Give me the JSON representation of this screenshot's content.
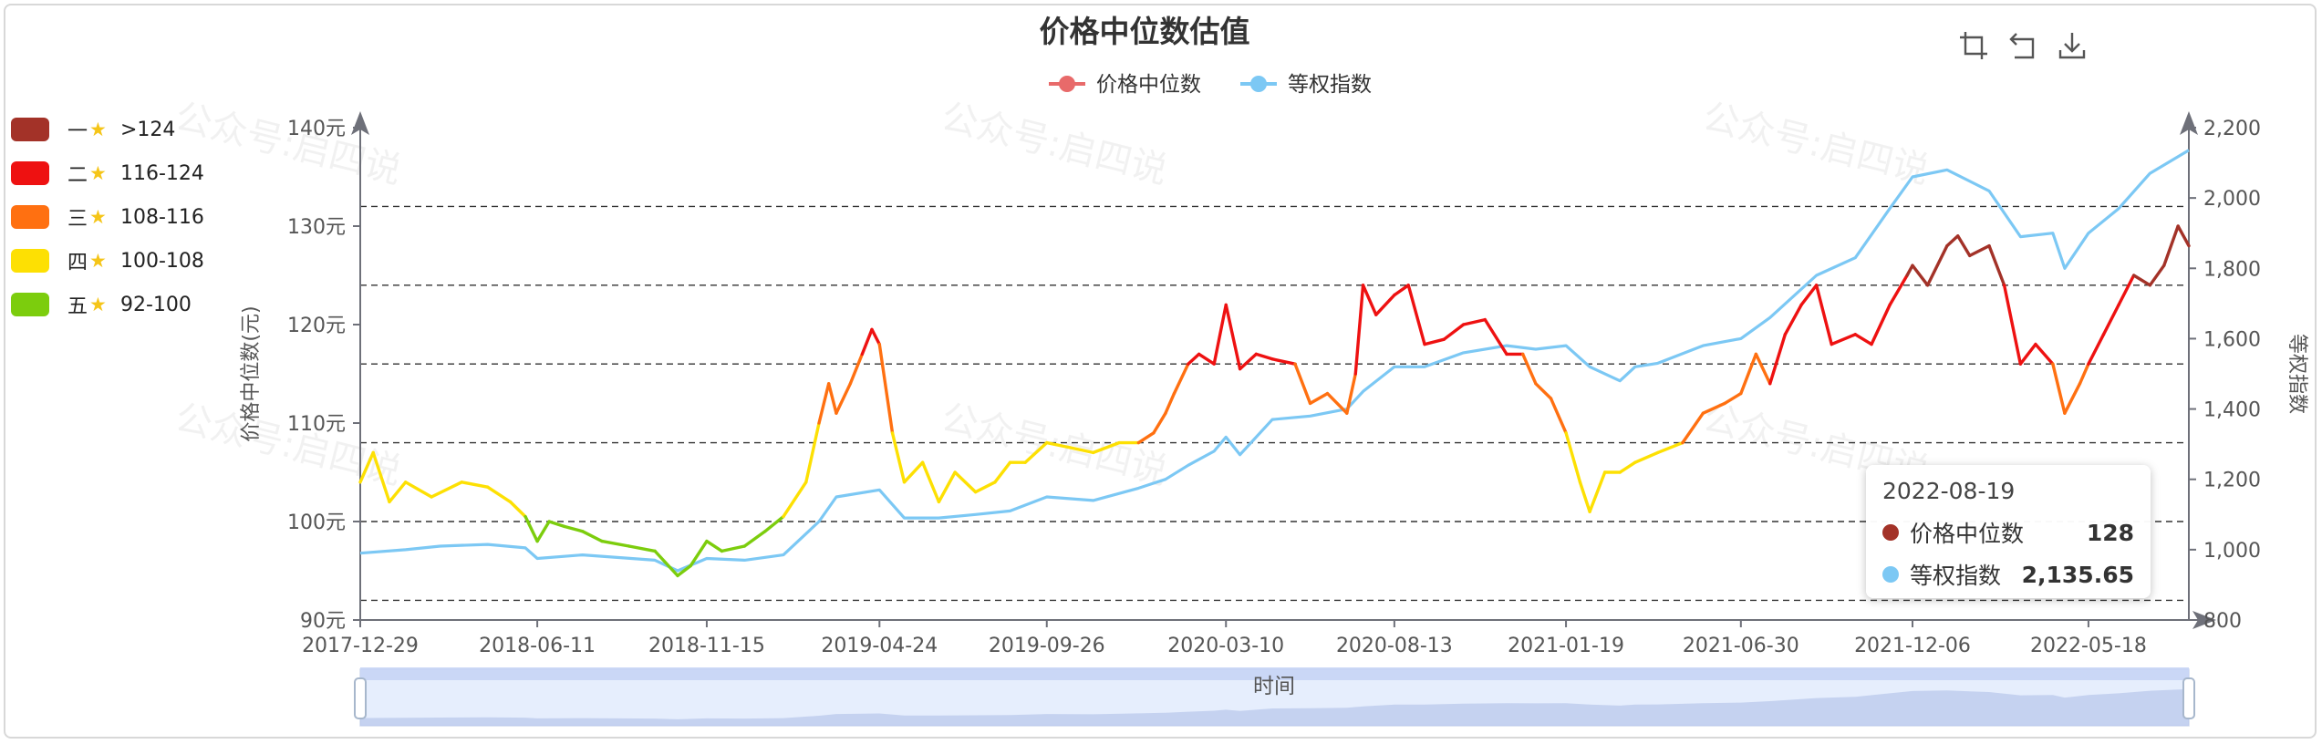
{
  "chart_data": {
    "type": "line",
    "title": "价格中位数估值",
    "xlabel": "时间",
    "ylabel": "价格中位数(元)",
    "y2label": "等权指数",
    "x_ticks": [
      "2017-12-29",
      "2018-06-11",
      "2018-11-15",
      "2019-04-24",
      "2019-09-26",
      "2020-03-10",
      "2020-08-13",
      "2021-01-19",
      "2021-06-30",
      "2021-12-06",
      "2022-05-18"
    ],
    "y_ticks": [
      "90元",
      "100元",
      "110元",
      "120元",
      "130元",
      "140元"
    ],
    "y2_ticks": [
      "800",
      "1,000",
      "1,200",
      "1,400",
      "1,600",
      "1,800",
      "2,000",
      "2,200"
    ],
    "ylim": [
      90,
      140
    ],
    "y2lim": [
      800,
      2200
    ],
    "reference_lines": [
      92,
      100,
      108,
      116,
      124,
      132
    ],
    "x_range": [
      "2017-12-29",
      "2022-08-19"
    ],
    "series": [
      {
        "name": "价格中位数",
        "axis": "left",
        "color": "#e86a6a",
        "points": [
          [
            "2017-12-29",
            104
          ],
          [
            "2018-01-10",
            107
          ],
          [
            "2018-01-25",
            102
          ],
          [
            "2018-02-09",
            104
          ],
          [
            "2018-03-05",
            102.5
          ],
          [
            "2018-04-02",
            104
          ],
          [
            "2018-04-26",
            103.5
          ],
          [
            "2018-05-17",
            102
          ],
          [
            "2018-05-31",
            100.5
          ],
          [
            "2018-06-11",
            98
          ],
          [
            "2018-06-22",
            100
          ],
          [
            "2018-07-06",
            99.5
          ],
          [
            "2018-07-23",
            99
          ],
          [
            "2018-08-10",
            98
          ],
          [
            "2018-09-04",
            97.5
          ],
          [
            "2018-09-28",
            97
          ],
          [
            "2018-10-19",
            94.5
          ],
          [
            "2018-10-31",
            95.5
          ],
          [
            "2018-11-15",
            98
          ],
          [
            "2018-11-29",
            97
          ],
          [
            "2018-12-20",
            97.5
          ],
          [
            "2019-01-08",
            99
          ],
          [
            "2019-01-25",
            100.5
          ],
          [
            "2019-02-15",
            104
          ],
          [
            "2019-02-27",
            110
          ],
          [
            "2019-03-08",
            114
          ],
          [
            "2019-03-15",
            111
          ],
          [
            "2019-03-28",
            114
          ],
          [
            "2019-04-08",
            117
          ],
          [
            "2019-04-17",
            119.5
          ],
          [
            "2019-04-24",
            118
          ],
          [
            "2019-05-06",
            109
          ],
          [
            "2019-05-17",
            104
          ],
          [
            "2019-06-03",
            106
          ],
          [
            "2019-06-18",
            102
          ],
          [
            "2019-07-03",
            105
          ],
          [
            "2019-07-22",
            103
          ],
          [
            "2019-08-09",
            104
          ],
          [
            "2019-08-23",
            106
          ],
          [
            "2019-09-06",
            106
          ],
          [
            "2019-09-26",
            108
          ],
          [
            "2019-10-18",
            107.5
          ],
          [
            "2019-11-08",
            107
          ],
          [
            "2019-12-02",
            108
          ],
          [
            "2019-12-20",
            108
          ],
          [
            "2020-01-03",
            109
          ],
          [
            "2020-01-14",
            111
          ],
          [
            "2020-01-22",
            113
          ],
          [
            "2020-02-04",
            116
          ],
          [
            "2020-02-14",
            117
          ],
          [
            "2020-02-28",
            116
          ],
          [
            "2020-03-10",
            122
          ],
          [
            "2020-03-23",
            115.5
          ],
          [
            "2020-04-07",
            117
          ],
          [
            "2020-04-22",
            116.5
          ],
          [
            "2020-05-13",
            116
          ],
          [
            "2020-05-27",
            112
          ],
          [
            "2020-06-12",
            113
          ],
          [
            "2020-06-30",
            111
          ],
          [
            "2020-07-08",
            115
          ],
          [
            "2020-07-15",
            124
          ],
          [
            "2020-07-27",
            121
          ],
          [
            "2020-08-13",
            123
          ],
          [
            "2020-08-26",
            124
          ],
          [
            "2020-09-10",
            118
          ],
          [
            "2020-09-28",
            118.5
          ],
          [
            "2020-10-16",
            120
          ],
          [
            "2020-11-05",
            120.5
          ],
          [
            "2020-11-25",
            117
          ],
          [
            "2020-12-10",
            117
          ],
          [
            "2020-12-22",
            114
          ],
          [
            "2021-01-05",
            112.5
          ],
          [
            "2021-01-19",
            109
          ],
          [
            "2021-02-01",
            104
          ],
          [
            "2021-02-10",
            101
          ],
          [
            "2021-02-24",
            105
          ],
          [
            "2021-03-10",
            105
          ],
          [
            "2021-03-24",
            106
          ],
          [
            "2021-04-14",
            107
          ],
          [
            "2021-05-07",
            108
          ],
          [
            "2021-05-26",
            111
          ],
          [
            "2021-06-15",
            112
          ],
          [
            "2021-06-30",
            113
          ],
          [
            "2021-07-14",
            117
          ],
          [
            "2021-07-27",
            114
          ],
          [
            "2021-08-10",
            119
          ],
          [
            "2021-08-25",
            122
          ],
          [
            "2021-09-08",
            124
          ],
          [
            "2021-09-22",
            118
          ],
          [
            "2021-10-14",
            119
          ],
          [
            "2021-10-29",
            118
          ],
          [
            "2021-11-15",
            122
          ],
          [
            "2021-12-01",
            125
          ],
          [
            "2021-12-06",
            126
          ],
          [
            "2021-12-20",
            124
          ],
          [
            "2022-01-07",
            128
          ],
          [
            "2022-01-17",
            129
          ],
          [
            "2022-01-28",
            127
          ],
          [
            "2022-02-15",
            128
          ],
          [
            "2022-03-01",
            124
          ],
          [
            "2022-03-16",
            116
          ],
          [
            "2022-03-30",
            118
          ],
          [
            "2022-04-15",
            116
          ],
          [
            "2022-04-26",
            111
          ],
          [
            "2022-05-10",
            114
          ],
          [
            "2022-05-18",
            116
          ],
          [
            "2022-06-01",
            119
          ],
          [
            "2022-06-15",
            122
          ],
          [
            "2022-06-29",
            125
          ],
          [
            "2022-07-14",
            124
          ],
          [
            "2022-07-27",
            126
          ],
          [
            "2022-08-09",
            130
          ],
          [
            "2022-08-19",
            128
          ]
        ]
      },
      {
        "name": "等权指数",
        "axis": "right",
        "color": "#7cc8f4",
        "points": [
          [
            "2017-12-29",
            990
          ],
          [
            "2018-02-09",
            1000
          ],
          [
            "2018-03-13",
            1010
          ],
          [
            "2018-04-26",
            1015
          ],
          [
            "2018-05-31",
            1005
          ],
          [
            "2018-06-11",
            975
          ],
          [
            "2018-07-23",
            985
          ],
          [
            "2018-09-28",
            970
          ],
          [
            "2018-10-19",
            940
          ],
          [
            "2018-11-15",
            975
          ],
          [
            "2018-12-20",
            970
          ],
          [
            "2019-01-25",
            985
          ],
          [
            "2019-02-27",
            1080
          ],
          [
            "2019-03-15",
            1150
          ],
          [
            "2019-04-24",
            1170
          ],
          [
            "2019-05-17",
            1090
          ],
          [
            "2019-06-18",
            1090
          ],
          [
            "2019-07-22",
            1100
          ],
          [
            "2019-08-23",
            1110
          ],
          [
            "2019-09-26",
            1150
          ],
          [
            "2019-11-08",
            1140
          ],
          [
            "2019-12-20",
            1175
          ],
          [
            "2020-01-14",
            1200
          ],
          [
            "2020-02-04",
            1240
          ],
          [
            "2020-02-28",
            1280
          ],
          [
            "2020-03-10",
            1320
          ],
          [
            "2020-03-23",
            1270
          ],
          [
            "2020-04-22",
            1370
          ],
          [
            "2020-05-27",
            1380
          ],
          [
            "2020-06-30",
            1400
          ],
          [
            "2020-07-15",
            1450
          ],
          [
            "2020-08-13",
            1520
          ],
          [
            "2020-09-10",
            1520
          ],
          [
            "2020-10-16",
            1560
          ],
          [
            "2020-11-25",
            1580
          ],
          [
            "2020-12-22",
            1570
          ],
          [
            "2021-01-19",
            1580
          ],
          [
            "2021-02-10",
            1520
          ],
          [
            "2021-03-10",
            1480
          ],
          [
            "2021-03-24",
            1520
          ],
          [
            "2021-04-14",
            1530
          ],
          [
            "2021-05-26",
            1580
          ],
          [
            "2021-06-30",
            1600
          ],
          [
            "2021-07-27",
            1660
          ],
          [
            "2021-09-08",
            1780
          ],
          [
            "2021-10-14",
            1830
          ],
          [
            "2021-11-15",
            1970
          ],
          [
            "2021-12-06",
            2060
          ],
          [
            "2022-01-07",
            2080
          ],
          [
            "2022-02-15",
            2020
          ],
          [
            "2022-03-16",
            1890
          ],
          [
            "2022-04-15",
            1900
          ],
          [
            "2022-04-26",
            1800
          ],
          [
            "2022-05-18",
            1900
          ],
          [
            "2022-06-15",
            1970
          ],
          [
            "2022-07-14",
            2070
          ],
          [
            "2022-08-19",
            2135.65
          ]
        ]
      }
    ],
    "visual_map": [
      {
        "level": "一",
        "range": ">124",
        "color": "#a33228"
      },
      {
        "level": "二",
        "range": "116-124",
        "color": "#ee1111"
      },
      {
        "level": "三",
        "range": "108-116",
        "color": "#ff7011"
      },
      {
        "level": "四",
        "range": "100-108",
        "color": "#fde003"
      },
      {
        "level": "五",
        "range": "92-100",
        "color": "#7ccd0d"
      }
    ],
    "tooltip": {
      "date": "2022-08-19",
      "rows": [
        {
          "name": "价格中位数",
          "value": "128",
          "color": "#a33228"
        },
        {
          "name": "等权指数",
          "value": "2,135.65",
          "color": "#7cc8f4"
        }
      ]
    },
    "watermark": "公众号:启四说",
    "legend_placement": "top-center",
    "grid": false
  },
  "toolbox": [
    "zoom-select-icon",
    "zoom-reset-icon",
    "download-icon"
  ]
}
